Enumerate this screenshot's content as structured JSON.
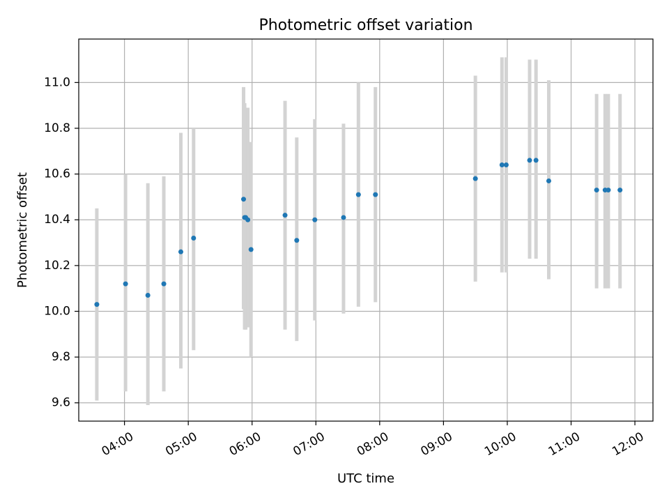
{
  "chart_data": {
    "type": "scatter",
    "title": "Photometric offset variation",
    "xlabel": "UTC time",
    "ylabel": "Photometric offset",
    "grid": true,
    "xlim": [
      "03:17",
      "12:17"
    ],
    "ylim": [
      9.52,
      11.19
    ],
    "x_ticks": [
      "04:00",
      "05:00",
      "06:00",
      "07:00",
      "08:00",
      "09:00",
      "10:00",
      "11:00",
      "12:00"
    ],
    "y_ticks": [
      "9.6",
      "9.8",
      "10.0",
      "10.2",
      "10.4",
      "10.6",
      "10.8",
      "11.0"
    ],
    "colors": {
      "points": "#1f77b4",
      "error_bars": "#d3d3d3"
    },
    "series": [
      {
        "x": [
          "03:34",
          "04:01",
          "04:22",
          "04:37",
          "04:53",
          "05:05",
          "05:52",
          "05:53",
          "05:54",
          "05:56",
          "05:59",
          "06:31",
          "06:42",
          "06:59",
          "07:26",
          "07:40",
          "07:56",
          "09:30",
          "09:55",
          "09:59",
          "10:21",
          "10:27",
          "10:39",
          "11:24",
          "11:32",
          "11:35",
          "11:46"
        ],
        "y": [
          10.03,
          10.12,
          10.07,
          10.12,
          10.26,
          10.32,
          10.49,
          10.41,
          10.41,
          10.4,
          10.27,
          10.42,
          10.31,
          10.4,
          10.41,
          10.51,
          10.51,
          10.58,
          10.64,
          10.64,
          10.66,
          10.66,
          10.57,
          10.53,
          10.53,
          10.53,
          10.53
        ],
        "err_low": [
          9.61,
          9.65,
          9.59,
          9.65,
          9.75,
          9.83,
          10.01,
          9.92,
          9.92,
          9.93,
          9.8,
          9.92,
          9.87,
          9.96,
          9.99,
          10.02,
          10.04,
          10.13,
          10.17,
          10.17,
          10.23,
          10.23,
          10.14,
          10.1,
          10.1,
          10.1,
          10.1
        ],
        "err_high": [
          10.45,
          10.6,
          10.56,
          10.59,
          10.78,
          10.8,
          10.98,
          10.91,
          10.89,
          10.89,
          10.74,
          10.92,
          10.76,
          10.84,
          10.82,
          11.0,
          10.98,
          11.03,
          11.11,
          11.11,
          11.1,
          11.1,
          11.01,
          10.95,
          10.95,
          10.95,
          10.95
        ]
      }
    ]
  }
}
